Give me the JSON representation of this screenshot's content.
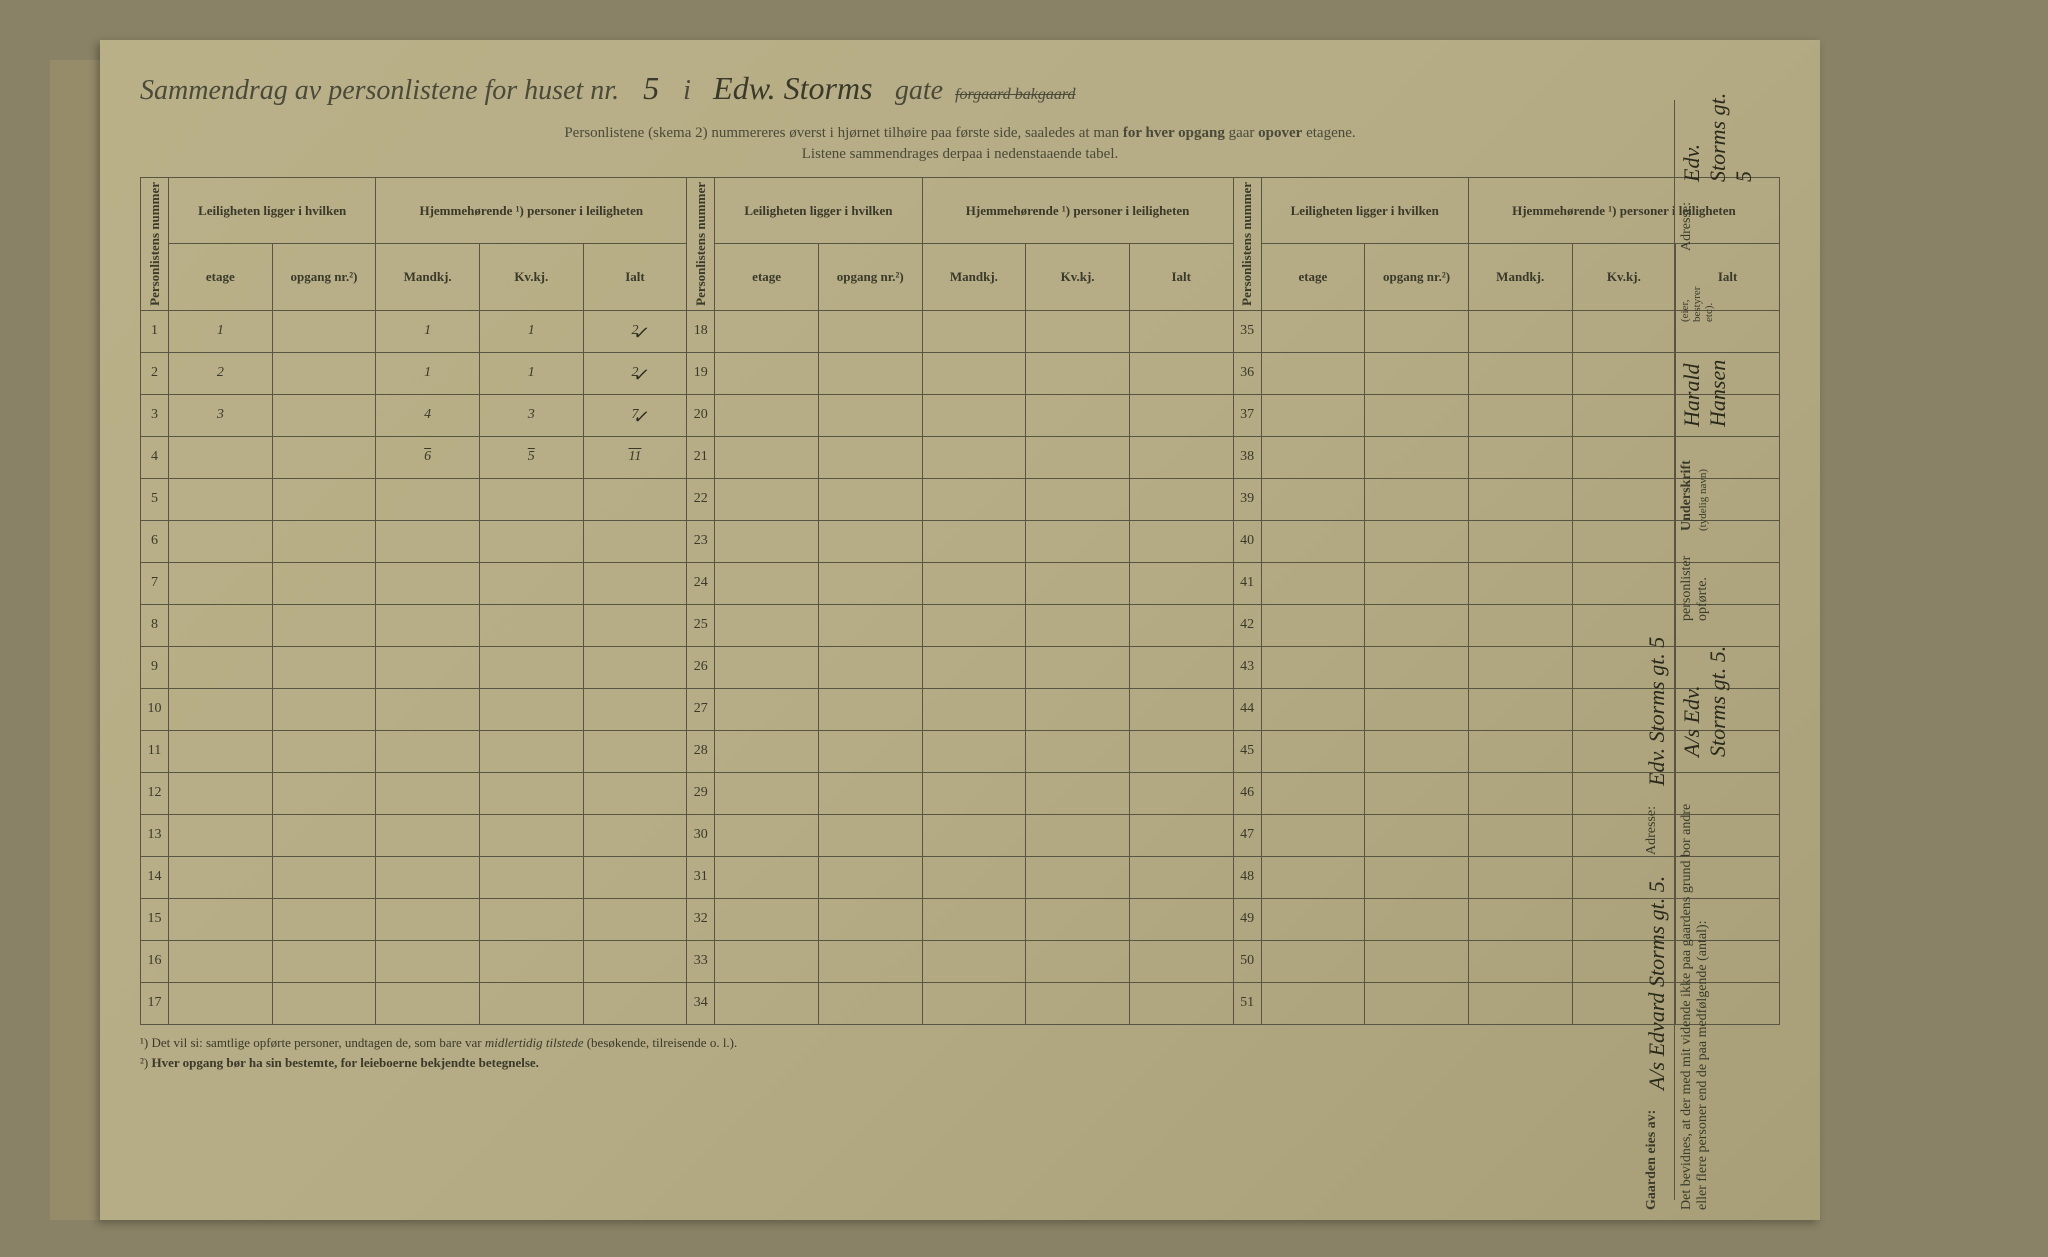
{
  "title": {
    "prefix": "Sammendrag av personlistene for huset nr.",
    "house_nr": "5",
    "i": "i",
    "street_hw": "Edw. Storms",
    "gate": "gate",
    "strikeout": "forgaard bakgaard"
  },
  "subtitle1": {
    "a": "Personlistene (skema 2) nummereres øverst i hjørnet tilhøire paa første side, saaledes at man ",
    "b": "for hver opgang",
    "c": " gaar ",
    "d": "opover",
    "e": " etagene."
  },
  "subtitle2": "Listene sammendrages derpaa i nedenstaaende tabel.",
  "headers": {
    "personlistens": "Personlistens nummer",
    "leiligheten": "Leiligheten ligger i hvilken",
    "hjemme": "Hjemmehørende ¹) personer i leiligheten",
    "etage": "etage",
    "opgang": "opgang nr.²)",
    "mandkj": "Mandkj.",
    "kvkj": "Kv.kj.",
    "ialt": "Ialt"
  },
  "rows_block1": [
    {
      "n": "1",
      "etage": "1",
      "opgang": "",
      "m": "1",
      "k": "1",
      "i": "2",
      "check": true
    },
    {
      "n": "2",
      "etage": "2",
      "opgang": "",
      "m": "1",
      "k": "1",
      "i": "2",
      "check": true
    },
    {
      "n": "3",
      "etage": "3",
      "opgang": "",
      "m": "4",
      "k": "3",
      "i": "7",
      "check": true
    },
    {
      "n": "4",
      "etage": "",
      "opgang": "",
      "m": "6",
      "k": "5",
      "i": "11",
      "check": false,
      "sum": true
    },
    {
      "n": "5",
      "etage": "",
      "opgang": "",
      "m": "",
      "k": "",
      "i": ""
    },
    {
      "n": "6",
      "etage": "",
      "opgang": "",
      "m": "",
      "k": "",
      "i": ""
    },
    {
      "n": "7",
      "etage": "",
      "opgang": "",
      "m": "",
      "k": "",
      "i": ""
    },
    {
      "n": "8",
      "etage": "",
      "opgang": "",
      "m": "",
      "k": "",
      "i": ""
    },
    {
      "n": "9",
      "etage": "",
      "opgang": "",
      "m": "",
      "k": "",
      "i": ""
    },
    {
      "n": "10",
      "etage": "",
      "opgang": "",
      "m": "",
      "k": "",
      "i": ""
    },
    {
      "n": "11",
      "etage": "",
      "opgang": "",
      "m": "",
      "k": "",
      "i": ""
    },
    {
      "n": "12",
      "etage": "",
      "opgang": "",
      "m": "",
      "k": "",
      "i": ""
    },
    {
      "n": "13",
      "etage": "",
      "opgang": "",
      "m": "",
      "k": "",
      "i": ""
    },
    {
      "n": "14",
      "etage": "",
      "opgang": "",
      "m": "",
      "k": "",
      "i": ""
    },
    {
      "n": "15",
      "etage": "",
      "opgang": "",
      "m": "",
      "k": "",
      "i": ""
    },
    {
      "n": "16",
      "etage": "",
      "opgang": "",
      "m": "",
      "k": "",
      "i": ""
    },
    {
      "n": "17",
      "etage": "",
      "opgang": "",
      "m": "",
      "k": "",
      "i": ""
    }
  ],
  "rows_block2_start": 18,
  "rows_block2_end": 34,
  "rows_block3_start": 35,
  "rows_block3_end": 51,
  "footnotes": {
    "f1_a": "¹)   Det vil si: samtlige opførte personer, undtagen de, som bare var ",
    "f1_b": "midlertidig tilstede",
    "f1_c": " (besøkende, tilreisende o. l.).",
    "f2_a": "²)   ",
    "f2_b": "Hver opgang bør ha sin bestemte, for leieboerne bekjendte betegnelse."
  },
  "right": {
    "gaarden_label": "Gaarden eies av:",
    "gaarden_hw": "A/s Edvard Storms gt. 5.",
    "adresse1_label": "Adresse:",
    "adresse1_hw": "Edv. Storms gt. 5",
    "bevidnes": "Det bevidnes, at der med mit vidende ikke paa gaardens grund bor andre eller flere personer end de paa medfølgende (antal):",
    "bevidnes_hw": "A/s Edv. Storms gt. 5.",
    "personlister": "personlister opførte.",
    "underskrift_label": "Underskrift",
    "underskrift_small": "(tydelig navn)",
    "underskrift_hw": "Harald Hansen",
    "underskrift_small2": "(eier, bestyrer etc).",
    "adresse2_label": "Adresse:",
    "adresse2_hw": "Edv. Storms gt. 5"
  },
  "colors": {
    "bg": "#8a8266",
    "paper": "#bab088",
    "border": "#5a5542",
    "text": "#3a3a2a",
    "hw": "#2a2a1a"
  }
}
